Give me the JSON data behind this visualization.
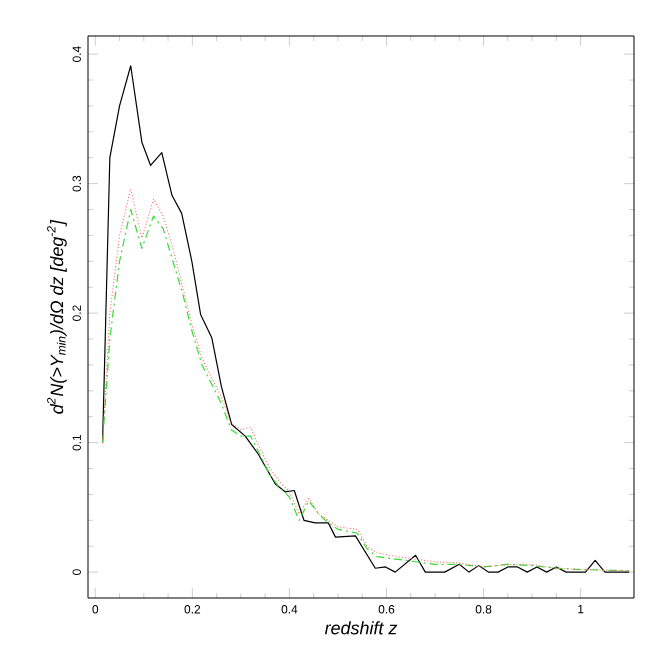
{
  "chart_data": {
    "type": "line",
    "xlabel": "*redshift z*",
    "ylabel": "*d$^{2}$N(>Y$_{min}$)/dΩ dz [deg$^{-2}$]*",
    "xlim": [
      -0.015,
      1.11
    ],
    "ylim": [
      -0.02,
      0.414
    ],
    "xticks": [
      0,
      0.2,
      0.4,
      0.6,
      0.8,
      1
    ],
    "yticks": [
      0,
      0.1,
      0.2,
      0.3,
      0.4
    ],
    "grid": false,
    "marker": "none",
    "series": [
      {
        "color": "#000000",
        "line_style": "solid",
        "x": [
          0.015,
          0.03,
          0.05,
          0.073,
          0.096,
          0.114,
          0.137,
          0.158,
          0.178,
          0.199,
          0.217,
          0.24,
          0.26,
          0.281,
          0.309,
          0.336,
          0.371,
          0.391,
          0.41,
          0.43,
          0.453,
          0.48,
          0.495,
          0.536,
          0.577,
          0.598,
          0.618,
          0.66,
          0.68,
          0.72,
          0.75,
          0.77,
          0.79,
          0.81,
          0.83,
          0.85,
          0.87,
          0.89,
          0.91,
          0.93,
          0.95,
          0.97,
          0.99,
          1.01,
          1.03,
          1.05,
          1.07,
          1.1
        ],
        "values": [
          0.1,
          0.32,
          0.36,
          0.391,
          0.332,
          0.314,
          0.324,
          0.291,
          0.277,
          0.24,
          0.199,
          0.181,
          0.143,
          0.114,
          0.105,
          0.091,
          0.068,
          0.062,
          0.063,
          0.04,
          0.038,
          0.038,
          0.027,
          0.028,
          0.003,
          0.004,
          0,
          0.013,
          0,
          0,
          0.006,
          0,
          0.005,
          0,
          0,
          0.004,
          0.004,
          0,
          0.004,
          0,
          0.004,
          0,
          0,
          0,
          0.009,
          0,
          0,
          0
        ]
      },
      {
        "color": "#ff6060",
        "line_style": "dotted",
        "x": [
          0.015,
          0.03,
          0.05,
          0.073,
          0.096,
          0.12,
          0.14,
          0.16,
          0.18,
          0.2,
          0.22,
          0.24,
          0.26,
          0.28,
          0.3,
          0.32,
          0.34,
          0.36,
          0.38,
          0.4,
          0.42,
          0.44,
          0.46,
          0.48,
          0.5,
          0.54,
          0.56,
          0.58,
          0.62,
          0.66,
          0.7,
          0.75,
          0.8,
          0.85,
          0.9,
          0.95,
          1.0,
          1.1
        ],
        "values": [
          0.1,
          0.2,
          0.26,
          0.296,
          0.258,
          0.288,
          0.275,
          0.25,
          0.22,
          0.19,
          0.165,
          0.15,
          0.135,
          0.115,
          0.11,
          0.112,
          0.095,
          0.08,
          0.07,
          0.062,
          0.045,
          0.057,
          0.045,
          0.04,
          0.035,
          0.033,
          0.02,
          0.015,
          0.012,
          0.01,
          0.008,
          0.007,
          0.004,
          0.006,
          0.006,
          0.003,
          0.002,
          0.001
        ]
      },
      {
        "color": "#33dd33",
        "line_style": "dashed",
        "x": [
          0.015,
          0.03,
          0.05,
          0.073,
          0.096,
          0.12,
          0.14,
          0.16,
          0.18,
          0.2,
          0.22,
          0.24,
          0.26,
          0.28,
          0.3,
          0.32,
          0.34,
          0.36,
          0.38,
          0.4,
          0.42,
          0.44,
          0.46,
          0.48,
          0.5,
          0.54,
          0.56,
          0.58,
          0.62,
          0.66,
          0.7,
          0.75,
          0.8,
          0.85,
          0.9,
          0.95,
          1.0,
          1.1
        ],
        "values": [
          0.1,
          0.18,
          0.24,
          0.28,
          0.25,
          0.275,
          0.265,
          0.24,
          0.215,
          0.185,
          0.16,
          0.145,
          0.13,
          0.11,
          0.105,
          0.105,
          0.09,
          0.075,
          0.065,
          0.058,
          0.04,
          0.055,
          0.045,
          0.038,
          0.033,
          0.03,
          0.018,
          0.012,
          0.01,
          0.008,
          0.006,
          0.006,
          0.004,
          0.006,
          0.005,
          0.003,
          0.002,
          0.001
        ]
      }
    ]
  }
}
